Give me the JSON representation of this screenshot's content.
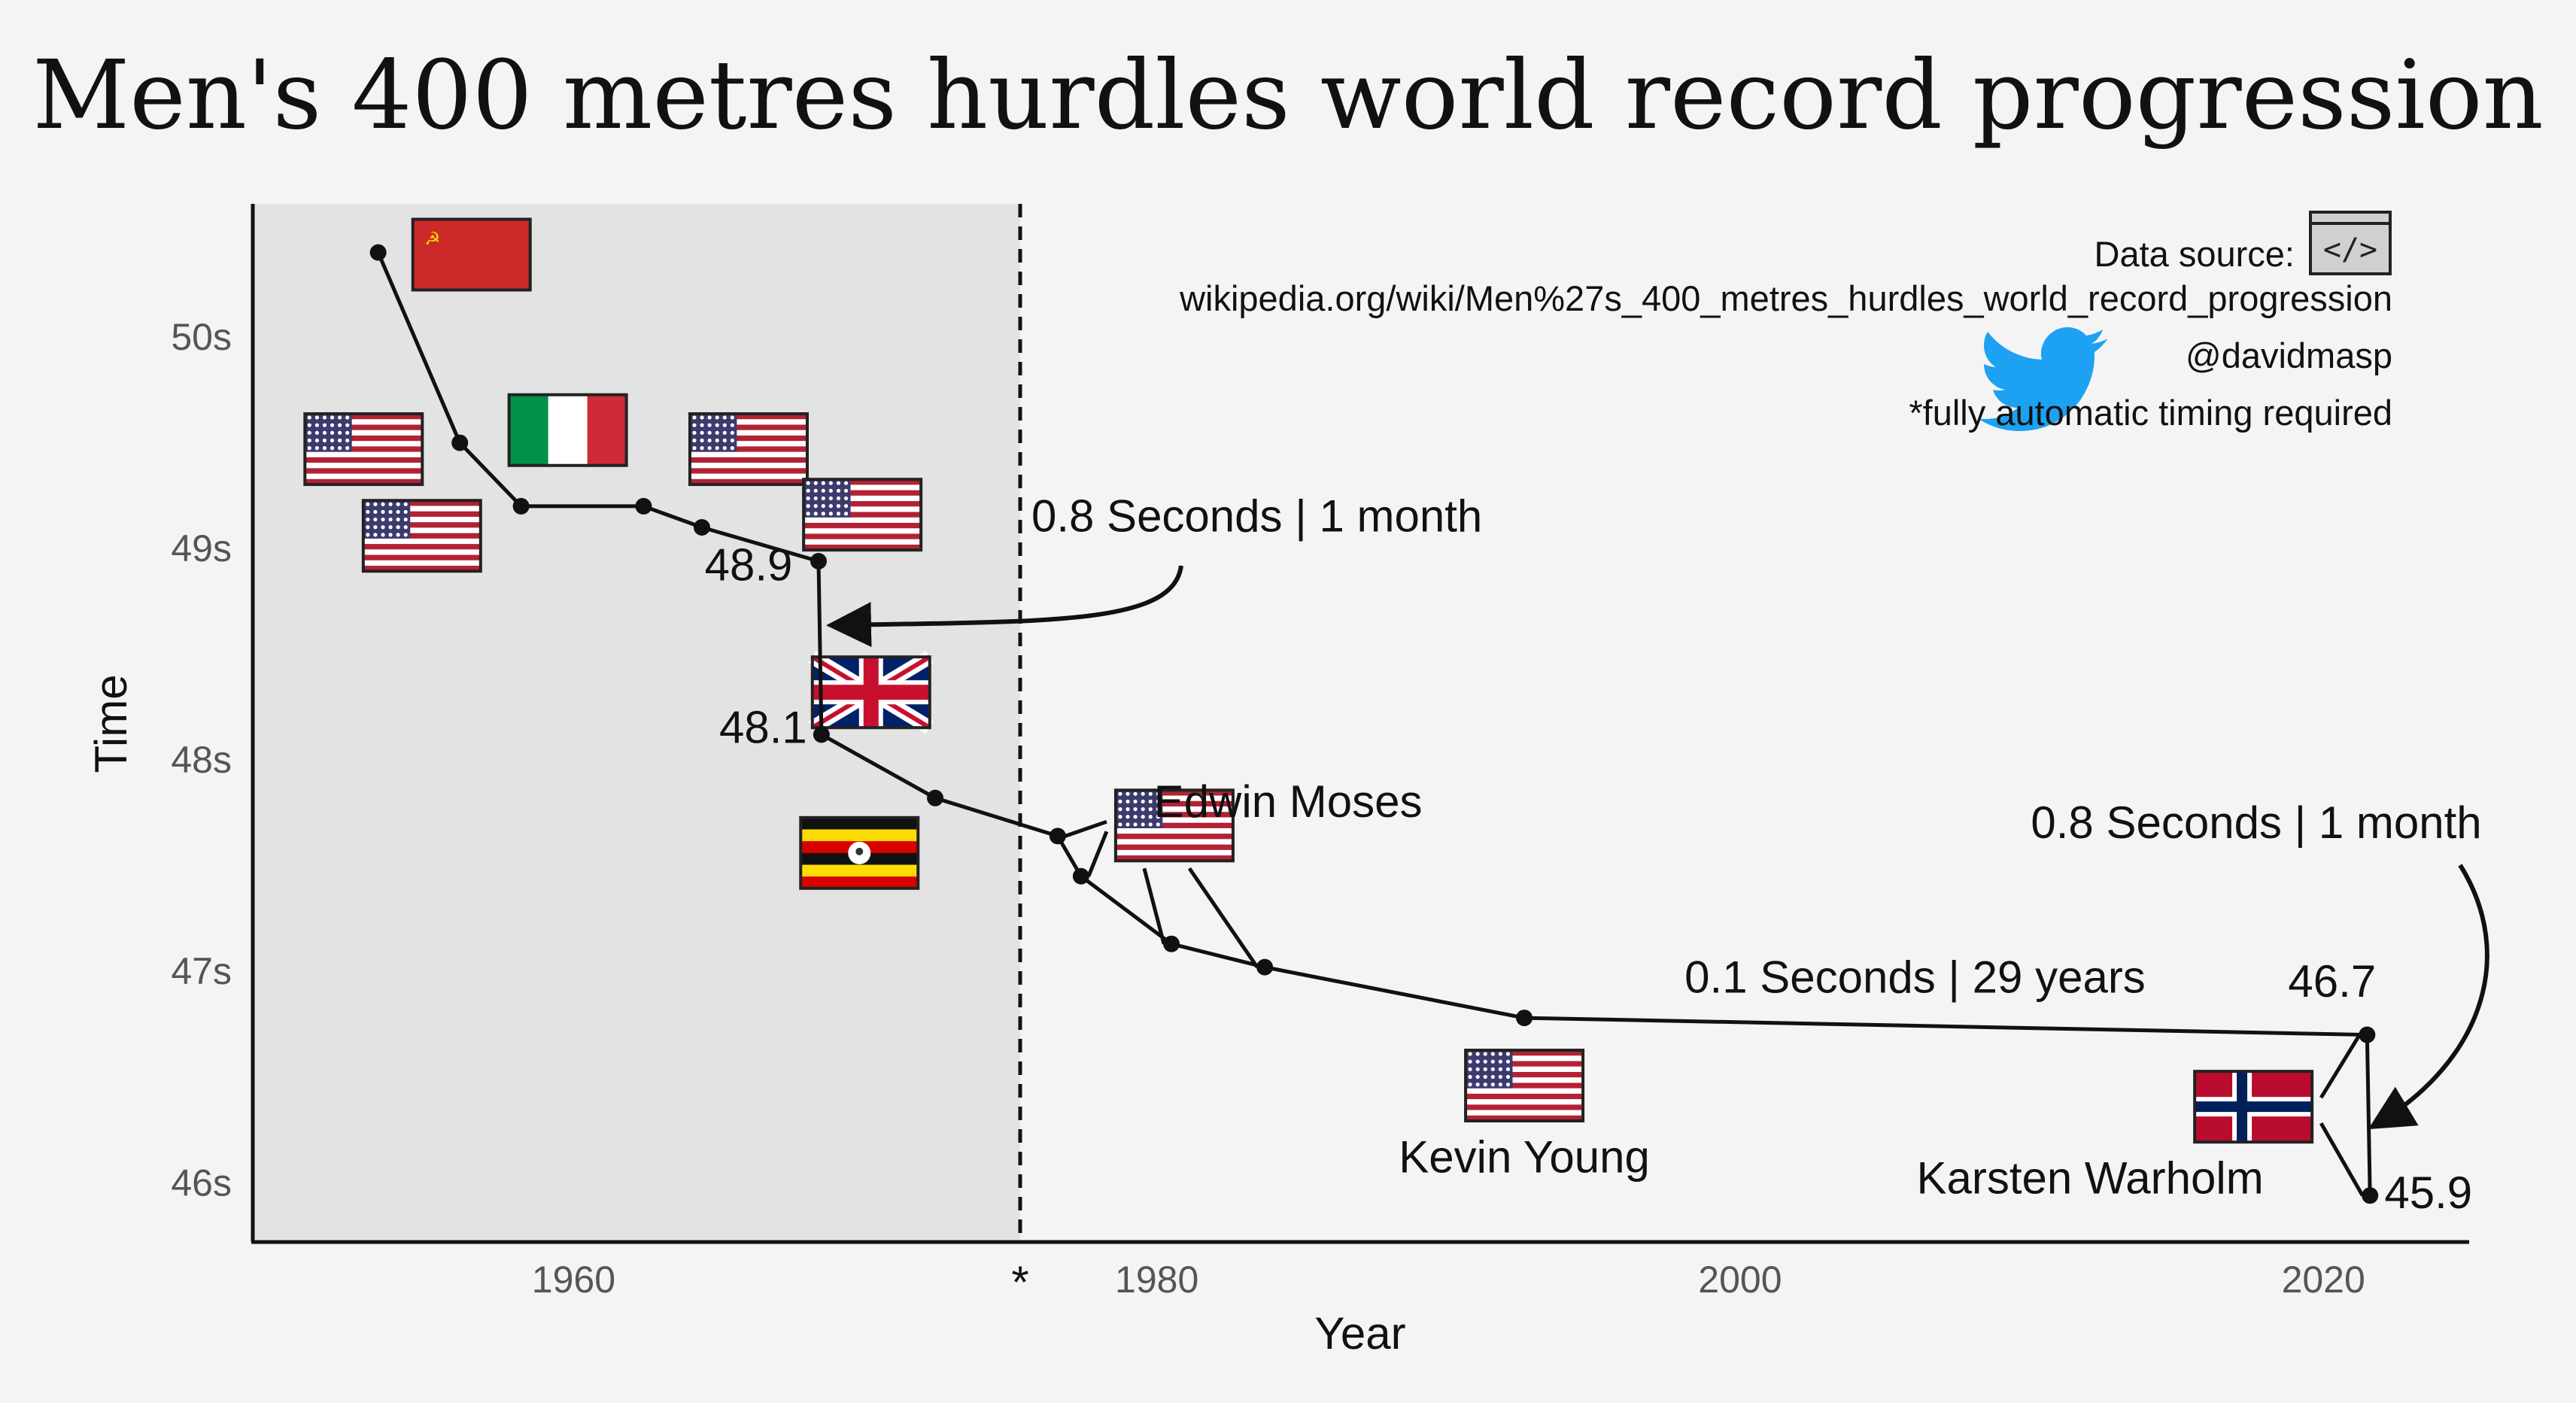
{
  "title": "Men's 400 metres hurdles world record progression",
  "colors": {
    "background": "#f4f4f4",
    "shade": "#e3e3e3",
    "line": "#111111",
    "highlight": "#b30000",
    "twitter": "#1da1f2"
  },
  "source": {
    "label": "Data source:",
    "url": "wikipedia.org/wiki/Men%27s_400_metres_hurdles_world_record_progression",
    "handle": "@davidmasp",
    "note": "*fully automatic timing required",
    "code_icon": "code-icon",
    "twitter_icon": "twitter-bird-icon"
  },
  "chart_data": {
    "type": "line",
    "xlabel": "Year",
    "ylabel": "Time",
    "xlim": [
      1949,
      2025
    ],
    "ylim": [
      45.72,
      50.63
    ],
    "xticks": [
      1960,
      1980,
      2000,
      2020
    ],
    "xtick_labels": [
      "1960",
      "1980",
      "2000",
      "2020"
    ],
    "yticks": [
      46,
      47,
      48,
      49,
      50
    ],
    "ytick_labels": [
      "46s",
      "47s",
      "48s",
      "49s",
      "50s"
    ],
    "fat_year": 1976,
    "fat_marker": "*",
    "shaded_before_fat": true,
    "grid": false,
    "series": [
      {
        "x": [
          1953.3,
          1956.1,
          1958.2,
          1962.4,
          1964.4,
          1968.4,
          1968.5,
          1972.4,
          1976.6,
          1977.4,
          1980.5,
          1983.7,
          1992.6,
          2021.5,
          2021.6
        ],
        "y": [
          50.4,
          49.5,
          49.2,
          49.2,
          49.1,
          48.94,
          48.12,
          47.82,
          47.64,
          47.45,
          47.13,
          47.02,
          46.78,
          46.7,
          45.94
        ]
      }
    ],
    "flags": [
      {
        "country": "soviet-union",
        "x": 1956.5,
        "y": 50.39
      },
      {
        "country": "usa",
        "x": 1952.8,
        "y": 49.47
      },
      {
        "country": "italy",
        "x": 1959.8,
        "y": 49.56
      },
      {
        "country": "usa",
        "x": 1966.0,
        "y": 49.47
      },
      {
        "country": "usa",
        "x": 1954.8,
        "y": 49.06
      },
      {
        "country": "usa",
        "x": 1969.9,
        "y": 49.16
      },
      {
        "country": "great-britain",
        "x": 1970.2,
        "y": 48.32
      },
      {
        "country": "uganda",
        "x": 1969.8,
        "y": 47.56
      },
      {
        "country": "usa",
        "x": 1980.6,
        "y": 47.69
      },
      {
        "country": "usa",
        "x": 1992.6,
        "y": 46.46
      },
      {
        "country": "norway",
        "x": 2017.6,
        "y": 46.36
      }
    ],
    "labels": [
      {
        "text": "48.9",
        "x": 1966.0,
        "y": 48.85,
        "color": "line"
      },
      {
        "text": "48.1",
        "x": 1966.5,
        "y": 48.08,
        "color": "line"
      },
      {
        "text": "0.8 Seconds | 1 month",
        "x": 1975.7,
        "y": 49.08,
        "anchor": "start",
        "color": "line"
      },
      {
        "text": "Edwin Moses",
        "x": 1984.5,
        "y": 47.73,
        "color": "line"
      },
      {
        "text": "Kevin Young",
        "x": 1992.6,
        "y": 46.05,
        "color": "line"
      },
      {
        "text": "0.1 Seconds | 29 years",
        "x": 2006.0,
        "y": 46.9,
        "color": "line"
      },
      {
        "text": "46.7",
        "x": 2020.3,
        "y": 46.88,
        "color": "line"
      },
      {
        "text": "0.8 Seconds | 1 month",
        "x": 2017.7,
        "y": 47.63,
        "color": "line"
      },
      {
        "text": "Karsten Warholm",
        "x": 2012.0,
        "y": 45.95,
        "color": "line"
      },
      {
        "text": "45.9",
        "x": 2023.6,
        "y": 45.88,
        "color": "highlight"
      }
    ]
  }
}
